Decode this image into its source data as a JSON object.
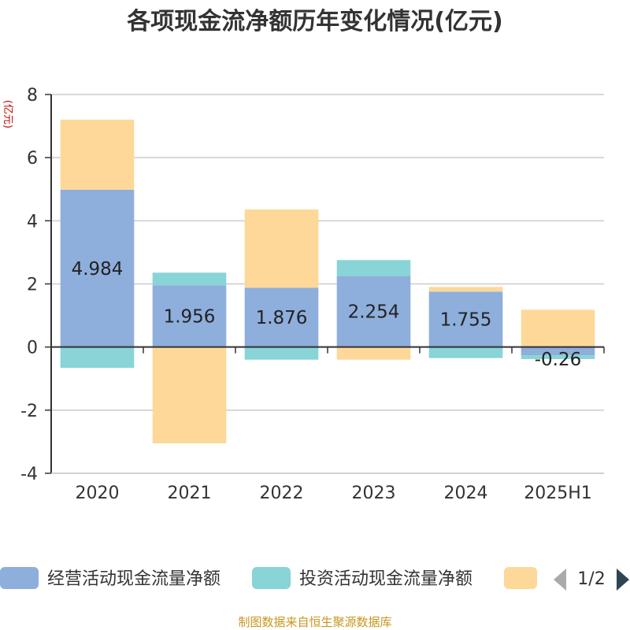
{
  "chart_data": {
    "type": "bar",
    "stacked": true,
    "title": "各项现金流净额历年变化情况(亿元)",
    "ylabel": "(亿元)",
    "categories": [
      "2020",
      "2021",
      "2022",
      "2023",
      "2024",
      "2025H1"
    ],
    "ylim": [
      -4,
      8
    ],
    "yticks": [
      -4,
      -2,
      0,
      2,
      4,
      6,
      8
    ],
    "grid": true,
    "legend_position": "bottom",
    "series": [
      {
        "name": "经营活动现金流量净额",
        "color": "#8eaedc",
        "values": [
          4.984,
          1.956,
          1.876,
          2.254,
          1.755,
          -0.26
        ],
        "labels": [
          "4.984",
          "1.956",
          "1.876",
          "2.254",
          "1.755",
          "-0.26"
        ]
      },
      {
        "name": "投资活动现金流量净额",
        "color": "#88d4d6",
        "values": [
          -0.66,
          0.4,
          -0.4,
          0.5,
          -0.35,
          -0.12
        ]
      },
      {
        "name": "",
        "color": "#fdd898",
        "values": [
          2.22,
          -3.05,
          2.48,
          -0.4,
          0.15,
          1.18
        ]
      }
    ]
  },
  "legend": {
    "page": "1/2"
  },
  "footer": {
    "source": "制图数据来自恒生聚源数据库"
  }
}
